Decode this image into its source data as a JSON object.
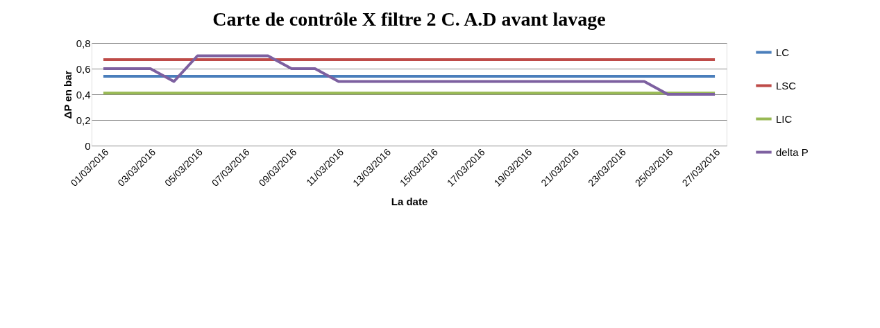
{
  "chart_data": {
    "type": "line",
    "title": "Carte de contrôle X filtre 2 C. A.D avant lavage",
    "xlabel": "La date",
    "ylabel": "ΔP en bar",
    "categories": [
      "01/03/2016",
      null,
      "03/03/2016",
      null,
      "05/03/2016",
      null,
      "07/03/2016",
      null,
      "09/03/2016",
      null,
      "11/03/2016",
      null,
      "13/03/2016",
      null,
      "15/03/2016",
      null,
      "17/03/2016",
      null,
      "19/03/2016",
      null,
      "21/03/2016",
      null,
      "23/03/2016",
      null,
      "25/03/2016",
      null,
      "27/03/2016"
    ],
    "series": [
      {
        "name": "LC",
        "color": "#4a7ebb",
        "values": [
          0.54,
          0.54,
          0.54,
          0.54,
          0.54,
          0.54,
          0.54,
          0.54,
          0.54,
          0.54,
          0.54,
          0.54,
          0.54,
          0.54,
          0.54,
          0.54,
          0.54,
          0.54,
          0.54,
          0.54,
          0.54,
          0.54,
          0.54,
          0.54,
          0.54,
          0.54,
          0.54
        ]
      },
      {
        "name": "LSC",
        "color": "#be4b48",
        "values": [
          0.67,
          0.67,
          0.67,
          0.67,
          0.67,
          0.67,
          0.67,
          0.67,
          0.67,
          0.67,
          0.67,
          0.67,
          0.67,
          0.67,
          0.67,
          0.67,
          0.67,
          0.67,
          0.67,
          0.67,
          0.67,
          0.67,
          0.67,
          0.67,
          0.67,
          0.67,
          0.67
        ]
      },
      {
        "name": "LIC",
        "color": "#98b954",
        "values": [
          0.41,
          0.41,
          0.41,
          0.41,
          0.41,
          0.41,
          0.41,
          0.41,
          0.41,
          0.41,
          0.41,
          0.41,
          0.41,
          0.41,
          0.41,
          0.41,
          0.41,
          0.41,
          0.41,
          0.41,
          0.41,
          0.41,
          0.41,
          0.41,
          0.41,
          0.41,
          0.41
        ]
      },
      {
        "name": "delta P",
        "color": "#7d60a0",
        "values": [
          0.6,
          0.6,
          0.6,
          0.5,
          0.7,
          0.7,
          0.7,
          0.7,
          0.6,
          0.6,
          0.5,
          0.5,
          0.5,
          0.5,
          0.5,
          0.5,
          0.5,
          0.5,
          0.5,
          0.5,
          0.5,
          0.5,
          0.5,
          0.5,
          0.4,
          0.4,
          0.4
        ]
      }
    ],
    "ylim": [
      0,
      0.8
    ],
    "yticks": [
      0,
      {
        "value": 0.2,
        "label": "0,2"
      },
      {
        "value": 0.4,
        "label": "0,4"
      },
      {
        "value": 0.6,
        "label": "0,6"
      },
      {
        "value": 0.8,
        "label": "0,8"
      }
    ],
    "grid": "y",
    "legend": "right"
  }
}
